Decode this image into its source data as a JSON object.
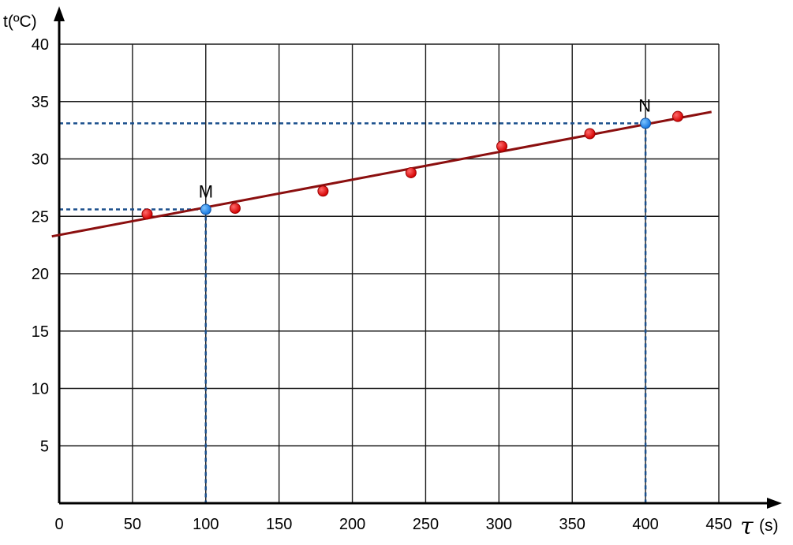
{
  "chart_data": {
    "type": "scatter",
    "ylabel": "t(ºC)",
    "xlabel_symbol": "τ",
    "xlabel_unit": "(s)",
    "xlim": [
      0,
      450
    ],
    "ylim": [
      0,
      40
    ],
    "x_ticks": [
      0,
      50,
      100,
      150,
      200,
      250,
      300,
      350,
      400,
      450
    ],
    "y_ticks": [
      5,
      10,
      15,
      20,
      25,
      30,
      35,
      40
    ],
    "grid": true,
    "series": [
      {
        "points": [
          {
            "x": 60,
            "y": 25.2
          },
          {
            "x": 120,
            "y": 25.7
          },
          {
            "x": 180,
            "y": 27.2
          },
          {
            "x": 240,
            "y": 28.8
          },
          {
            "x": 302,
            "y": 31.1
          },
          {
            "x": 362,
            "y": 32.2
          },
          {
            "x": 422,
            "y": 33.7
          }
        ],
        "color": "#e01010"
      }
    ],
    "trend_line": {
      "x": [
        -5,
        445
      ],
      "y": [
        23.25,
        34.1
      ],
      "color": "#8b0f0f"
    },
    "marked_points": [
      {
        "label": "M",
        "x": 100,
        "y": 25.6
      },
      {
        "label": "N",
        "x": 400,
        "y": 33.1
      }
    ],
    "marked_color": "#1e8fff",
    "guide_color": "#1a4f8c"
  }
}
